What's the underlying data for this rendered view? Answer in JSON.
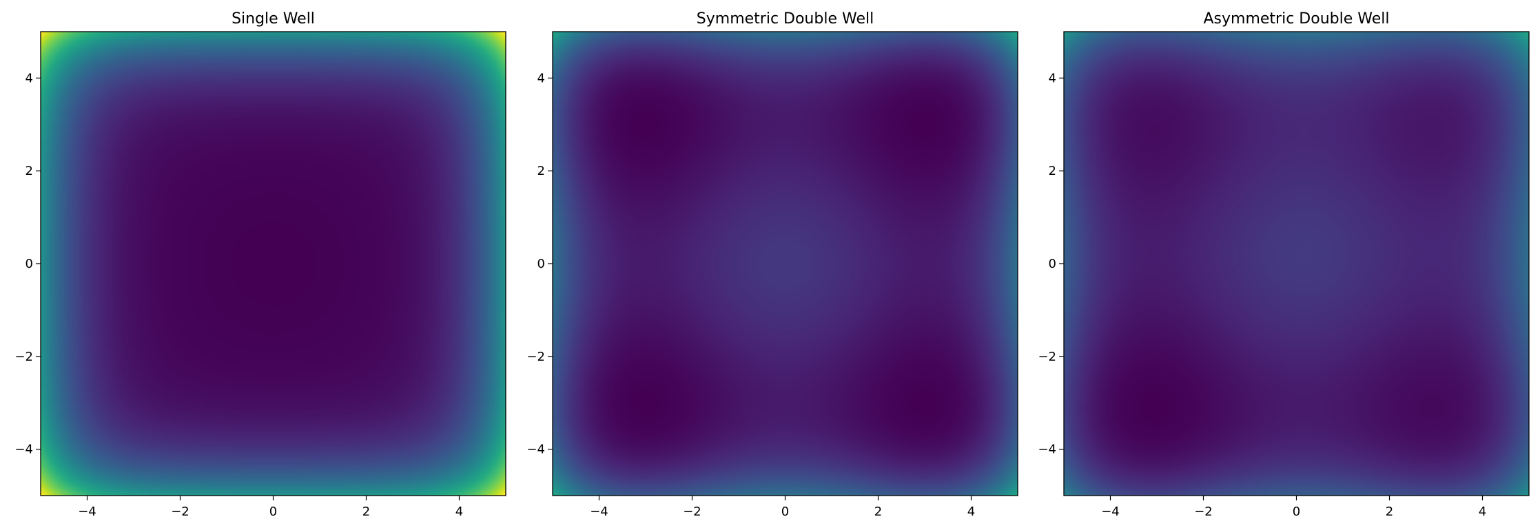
{
  "chart_data": [
    {
      "type": "heatmap",
      "title": "Single Well",
      "potential": "single",
      "xlim": [
        -5,
        5
      ],
      "ylim": [
        -5,
        5
      ],
      "xticks": [
        -4,
        -2,
        0,
        2,
        4
      ],
      "yticks": [
        -4,
        -2,
        0,
        2,
        4
      ],
      "xtick_labels": [
        "−4",
        "−2",
        "0",
        "2",
        "4"
      ],
      "ytick_labels": [
        "−4",
        "−2",
        "0",
        "2",
        "4"
      ],
      "colormap": "viridis",
      "grid": false
    },
    {
      "type": "heatmap",
      "title": "Symmetric Double Well",
      "potential": "symmetric",
      "xlim": [
        -5,
        5
      ],
      "ylim": [
        -5,
        5
      ],
      "xticks": [
        -4,
        -2,
        0,
        2,
        4
      ],
      "yticks": [
        -4,
        -2,
        0,
        2,
        4
      ],
      "xtick_labels": [
        "−4",
        "−2",
        "0",
        "2",
        "4"
      ],
      "ytick_labels": [
        "−4",
        "−2",
        "0",
        "2",
        "4"
      ],
      "colormap": "viridis",
      "grid": false
    },
    {
      "type": "heatmap",
      "title": "Asymmetric Double Well",
      "potential": "asymmetric",
      "xlim": [
        -5,
        5
      ],
      "ylim": [
        -5,
        5
      ],
      "xticks": [
        -4,
        -2,
        0,
        2,
        4
      ],
      "yticks": [
        -4,
        -2,
        0,
        2,
        4
      ],
      "xtick_labels": [
        "−4",
        "−2",
        "0",
        "2",
        "4"
      ],
      "ytick_labels": [
        "−4",
        "−2",
        "0",
        "2",
        "4"
      ],
      "colormap": "viridis",
      "grid": false
    }
  ]
}
